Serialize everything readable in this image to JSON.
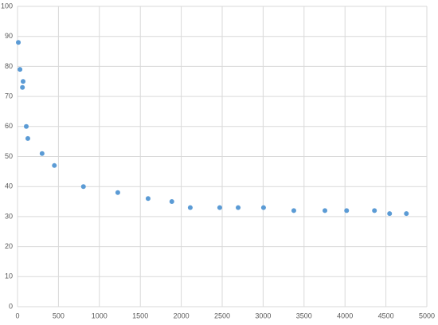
{
  "chart_data": {
    "type": "scatter",
    "color": "#5b9bd5",
    "grid": true,
    "x": [
      10,
      30,
      68,
      60,
      107,
      126,
      300,
      450,
      805,
      1225,
      1595,
      1885,
      2110,
      2470,
      2695,
      3005,
      3375,
      3755,
      4020,
      4360,
      4545,
      4750
    ],
    "values": [
      88,
      79,
      75,
      73,
      60,
      56,
      51,
      47,
      40,
      38,
      36,
      35,
      33,
      33,
      33,
      33,
      32,
      32,
      32,
      32,
      31,
      31
    ],
    "xlim": [
      0,
      5000
    ],
    "xticks": [
      0,
      500,
      1000,
      1500,
      2000,
      2500,
      3000,
      3500,
      4000,
      4500,
      5000
    ],
    "ylim": [
      0,
      100
    ],
    "yticks": [
      0,
      10,
      20,
      30,
      40,
      50,
      60,
      70,
      80,
      90,
      100
    ]
  }
}
